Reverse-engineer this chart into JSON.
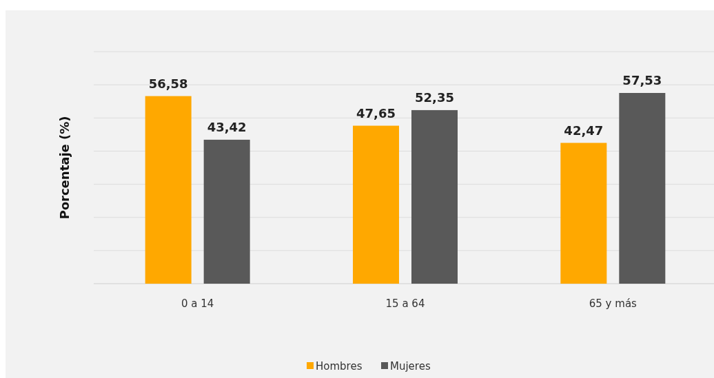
{
  "chart_data": {
    "type": "bar",
    "ylabel": "Porcentaje (%)",
    "categories": [
      "0 a 14",
      "15 a 64",
      "65 y más"
    ],
    "series": [
      {
        "name": "Hombres",
        "color": "#ffa800",
        "values": [
          56.58,
          47.65,
          42.47
        ],
        "value_labels": [
          "56,58",
          "47,65",
          "42,47"
        ]
      },
      {
        "name": "Mujeres",
        "color": "#595959",
        "values": [
          43.42,
          52.35,
          57.53
        ],
        "value_labels": [
          "43,42",
          "52,35",
          "57,53"
        ]
      }
    ],
    "grid": "y",
    "legend": "bottom"
  }
}
